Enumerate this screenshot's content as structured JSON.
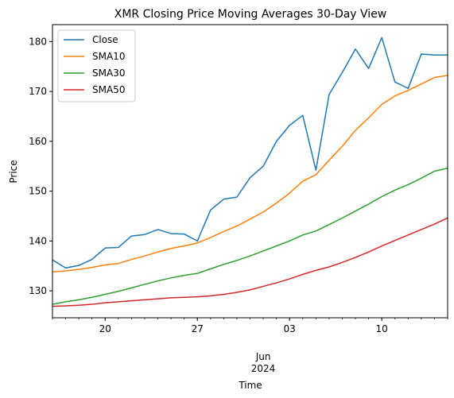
{
  "chart_data": {
    "type": "line",
    "title": "XMR Closing Price Moving Averages 30-Day View",
    "xlabel": "Time",
    "ylabel": "Price",
    "x_start": "2024-05-16",
    "x_end": "2024-06-15",
    "xlim": [
      "2024-05-16",
      "2024-06-15"
    ],
    "ylim": [
      124.6,
      183.4
    ],
    "yticks": [
      130,
      140,
      150,
      160,
      170,
      180
    ],
    "xticks": [
      {
        "date": "2024-05-20",
        "label": "20"
      },
      {
        "date": "2024-05-27",
        "label": "27"
      },
      {
        "date": "2024-06-03",
        "label": "03"
      },
      {
        "date": "2024-06-10",
        "label": "10"
      }
    ],
    "month_label": "Jun",
    "year_label": "2024",
    "month_label_date": "2024-06-01",
    "legend_position": "upper-left",
    "grid": false,
    "x": [
      "2024-05-16",
      "2024-05-17",
      "2024-05-18",
      "2024-05-19",
      "2024-05-20",
      "2024-05-21",
      "2024-05-22",
      "2024-05-23",
      "2024-05-24",
      "2024-05-25",
      "2024-05-26",
      "2024-05-27",
      "2024-05-28",
      "2024-05-29",
      "2024-05-30",
      "2024-05-31",
      "2024-06-01",
      "2024-06-02",
      "2024-06-03",
      "2024-06-04",
      "2024-06-05",
      "2024-06-06",
      "2024-06-07",
      "2024-06-08",
      "2024-06-09",
      "2024-06-10",
      "2024-06-11",
      "2024-06-12",
      "2024-06-13",
      "2024-06-14",
      "2024-06-15"
    ],
    "series": [
      {
        "name": "Close",
        "color": "#1f77b4",
        "values": [
          136.2,
          134.6,
          135.1,
          136.3,
          138.6,
          138.7,
          141.0,
          141.3,
          142.3,
          141.5,
          141.4,
          140.0,
          146.2,
          148.4,
          148.8,
          152.7,
          155.0,
          160.0,
          163.2,
          165.2,
          154.2,
          169.4,
          173.8,
          178.5,
          174.6,
          180.8,
          171.9,
          170.6,
          177.5,
          177.3,
          177.3
        ]
      },
      {
        "name": "SMA10",
        "color": "#ff7f0e",
        "values": [
          133.8,
          134.0,
          134.3,
          134.7,
          135.2,
          135.5,
          136.3,
          137.0,
          137.8,
          138.5,
          139.0,
          139.6,
          140.7,
          141.9,
          143.0,
          144.4,
          145.8,
          147.6,
          149.6,
          152.0,
          153.3,
          156.2,
          159.0,
          162.2,
          164.7,
          167.4,
          169.1,
          170.2,
          171.5,
          172.8,
          173.2
        ]
      },
      {
        "name": "SMA30",
        "color": "#2ca02c",
        "values": [
          127.3,
          127.8,
          128.2,
          128.7,
          129.3,
          129.9,
          130.6,
          131.3,
          132.0,
          132.6,
          133.1,
          133.5,
          134.4,
          135.3,
          136.1,
          137.0,
          138.0,
          139.0,
          140.0,
          141.2,
          142.0,
          143.3,
          144.6,
          146.0,
          147.4,
          148.9,
          150.2,
          151.3,
          152.6,
          154.0,
          154.6
        ]
      },
      {
        "name": "SMA50",
        "color": "#d62728",
        "values": [
          126.9,
          127.0,
          127.1,
          127.3,
          127.6,
          127.8,
          128.0,
          128.2,
          128.4,
          128.6,
          128.7,
          128.8,
          129.0,
          129.3,
          129.7,
          130.2,
          130.9,
          131.6,
          132.4,
          133.3,
          134.1,
          134.8,
          135.7,
          136.7,
          137.8,
          139.0,
          140.1,
          141.2,
          142.3,
          143.4,
          144.6
        ]
      }
    ]
  }
}
